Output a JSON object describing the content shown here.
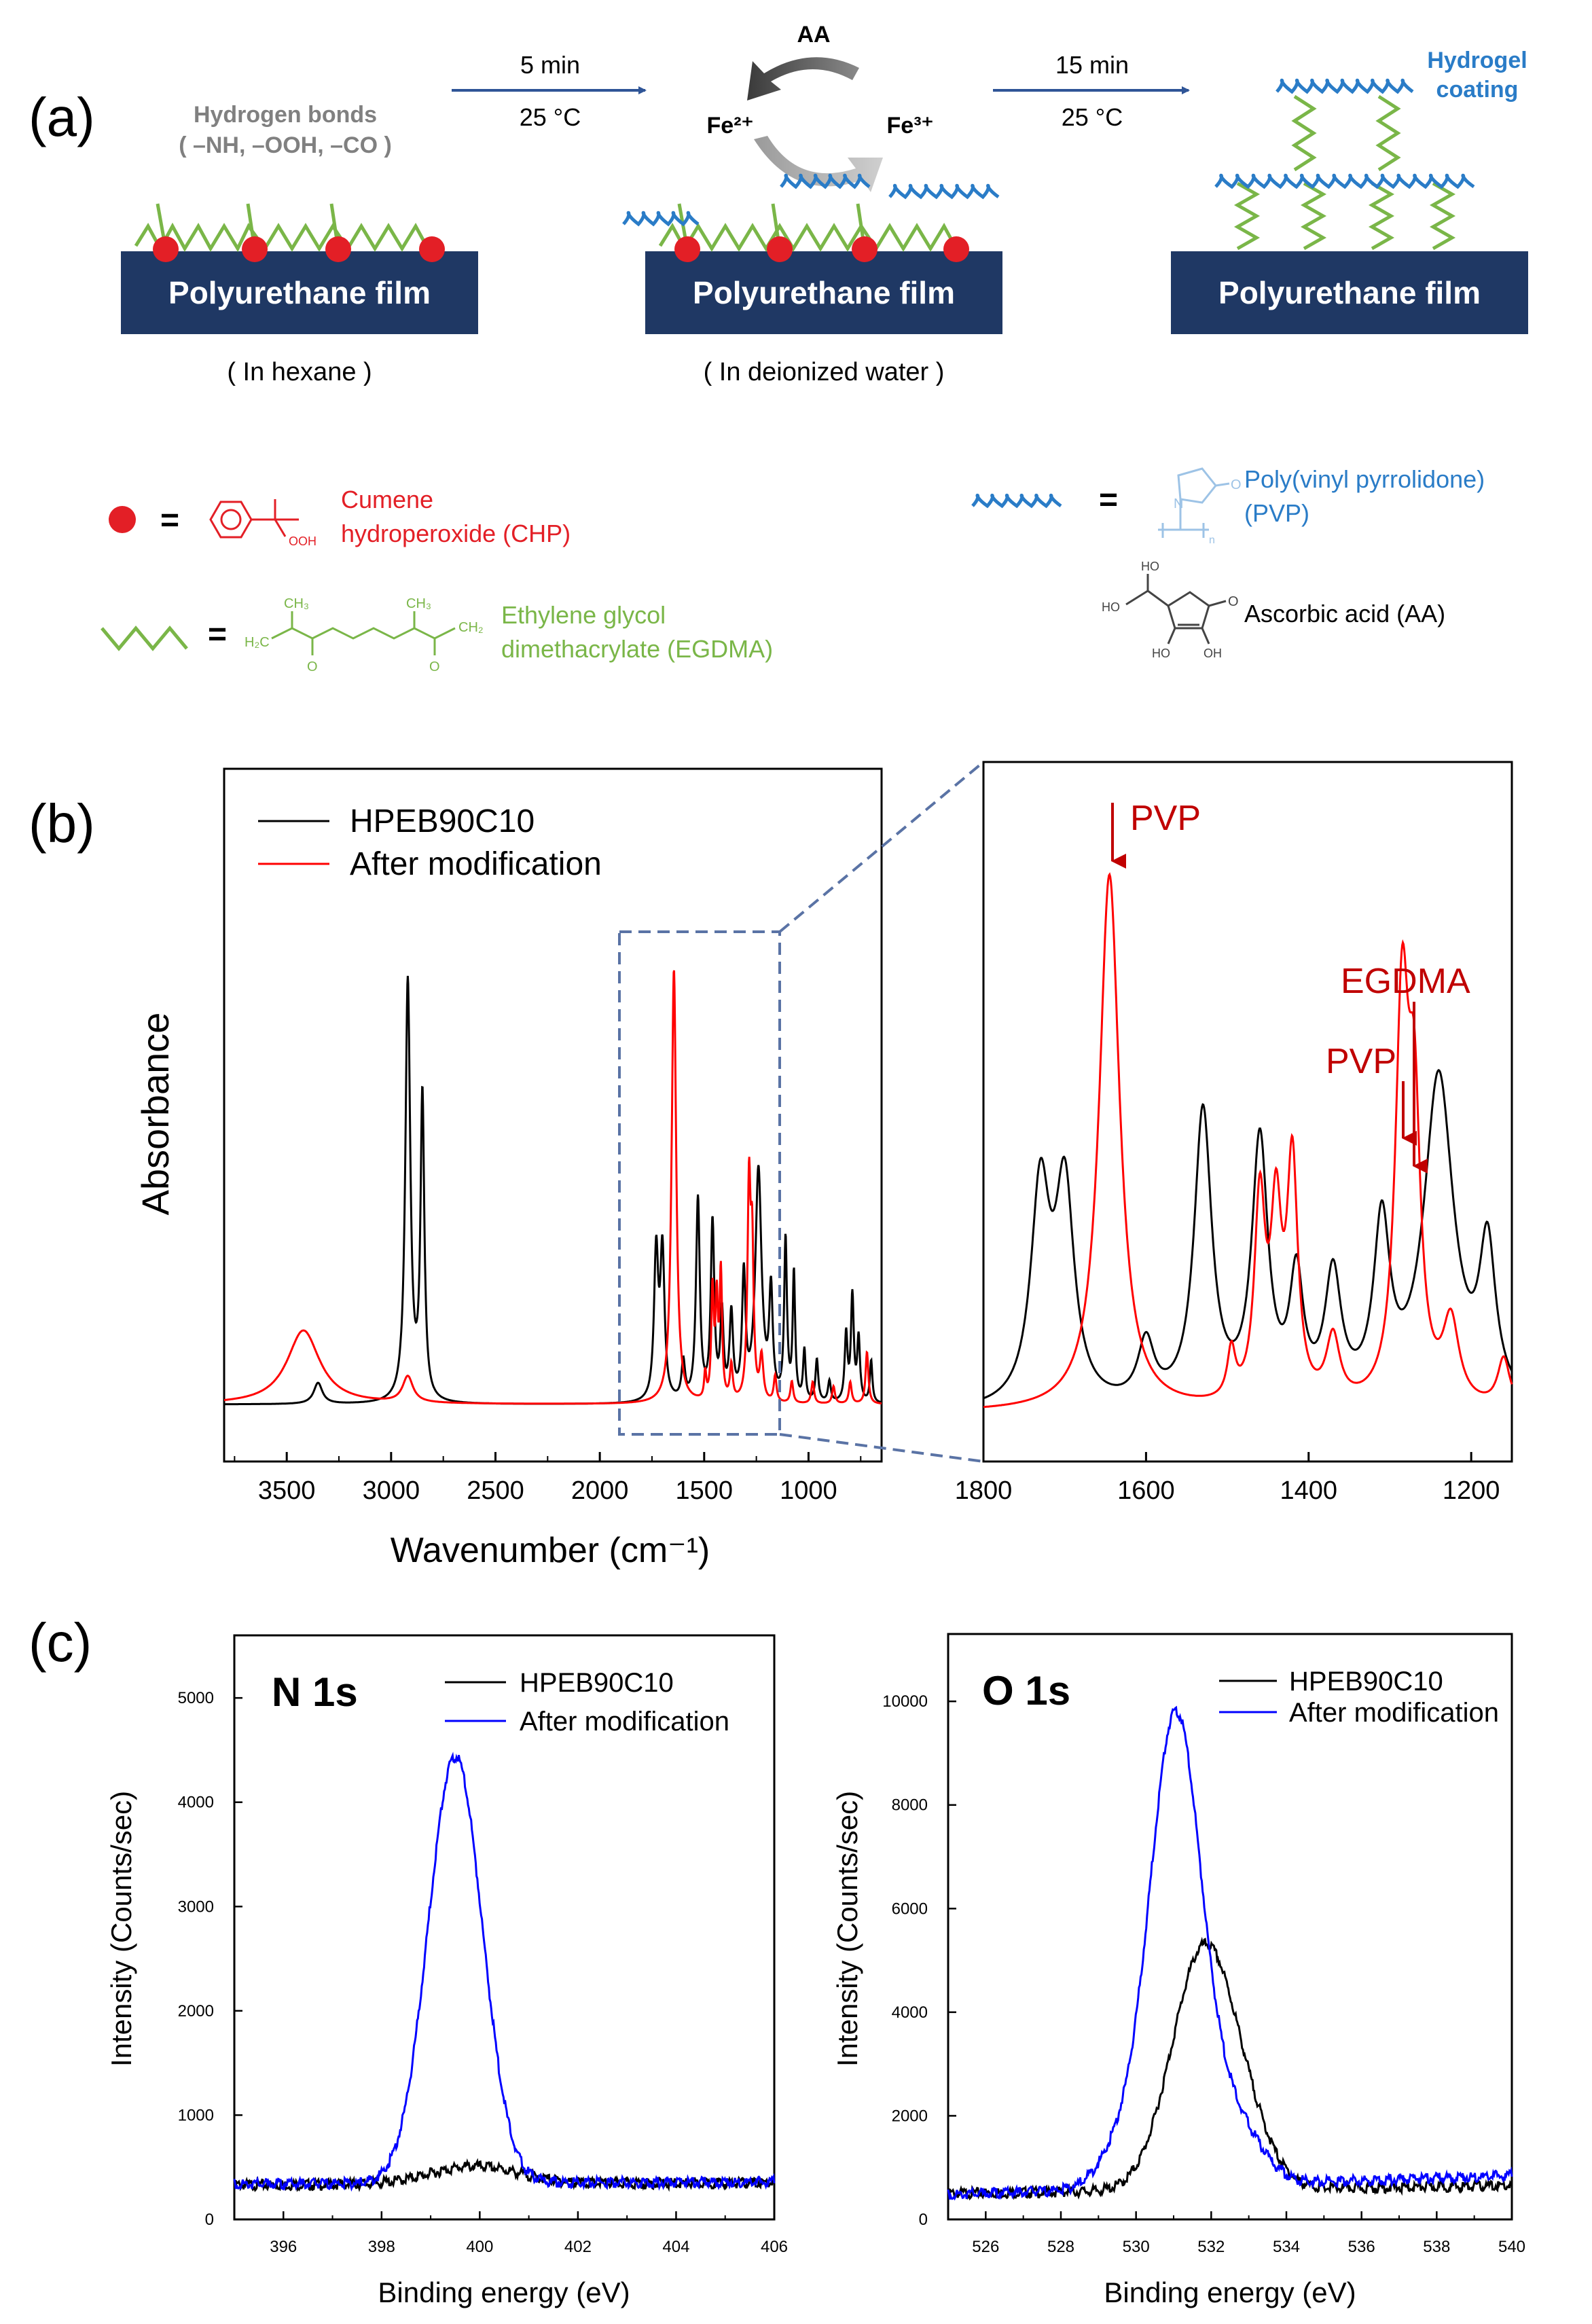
{
  "panel_a": {
    "label": "(a)",
    "hbond_title": "Hydrogen bonds",
    "hbond_groups": "( –NH, –OOH, –CO )",
    "film_label": "Polyurethane film",
    "step1_time": "5 min",
    "step1_temp": "25 °C",
    "step2_time": "15 min",
    "step2_temp": "25 °C",
    "aa_label": "AA",
    "fe2": "Fe²⁺",
    "fe3": "Fe³⁺",
    "hydrogel_line1": "Hydrogel",
    "hydrogel_line2": "coating",
    "medium1": "( In  hexane )",
    "medium2": "( In  deionized water )",
    "legend": {
      "equals": "=",
      "chp_line1": "Cumene",
      "chp_line2": "hydroperoxide (CHP)",
      "chp_ooh": "OOH",
      "egdma_line1": "Ethylene glycol",
      "egdma_line2": "dimethacrylate (EGDMA)",
      "egdma_ch3": "CH₃",
      "egdma_ch2": "CH₂",
      "egdma_h2c": "H₂C",
      "egdma_o": "O",
      "pvp_line1": "Poly(vinyl pyrrolidone)",
      "pvp_line2": "(PVP)",
      "pvp_n": "N",
      "pvp_o": "O",
      "pvp_sub": "n",
      "aa_name": "Ascorbic acid (AA)",
      "aa_ho": "HO",
      "aa_oh": "OH",
      "aa_o": "O"
    },
    "colors": {
      "navy": "#1f3864",
      "red": "#e31f26",
      "green": "#7ab648",
      "blue": "#2a7cc7",
      "gray": "#777777",
      "arrow": "#2f5597"
    }
  },
  "panel_b": {
    "label": "(b)",
    "chart_data": [
      {
        "type": "line",
        "xlabel": "Wavenumber (cm⁻¹)",
        "ylabel": "Absorbance",
        "xlim": [
          3800,
          650
        ],
        "xticks": [
          3500,
          3000,
          2500,
          2000,
          1500,
          1000
        ],
        "legend": [
          "HPEB90C10",
          "After modification"
        ],
        "series": [
          {
            "name": "HPEB90C10",
            "color": "#000000",
            "peaks": [
              [
                3350,
                0.05,
                25
              ],
              [
                2920,
                1.0,
                14
              ],
              [
                2850,
                0.72,
                11
              ],
              [
                1730,
                0.35,
                12
              ],
              [
                1700,
                0.35,
                12
              ],
              [
                1600,
                0.09,
                10
              ],
              [
                1530,
                0.48,
                11
              ],
              [
                1460,
                0.42,
                10
              ],
              [
                1415,
                0.2,
                9
              ],
              [
                1370,
                0.2,
                10
              ],
              [
                1310,
                0.29,
                10
              ],
              [
                1240,
                0.55,
                18
              ],
              [
                1180,
                0.25,
                10
              ],
              [
                1110,
                0.38,
                8
              ],
              [
                1070,
                0.3,
                7
              ],
              [
                1020,
                0.12,
                7
              ],
              [
                960,
                0.1,
                8
              ],
              [
                900,
                0.05,
                8
              ],
              [
                820,
                0.16,
                8
              ],
              [
                790,
                0.25,
                8
              ],
              [
                760,
                0.15,
                8
              ],
              [
                700,
                0.1,
                7
              ]
            ]
          },
          {
            "name": "After modification",
            "color": "#ff0000",
            "peaks": [
              [
                3420,
                0.17,
                95
              ],
              [
                2920,
                0.06,
                30
              ],
              [
                1645,
                1.0,
                13
              ],
              [
                1495,
                0.06,
                6
              ],
              [
                1460,
                0.25,
                7
              ],
              [
                1440,
                0.22,
                7
              ],
              [
                1420,
                0.29,
                7
              ],
              [
                1370,
                0.08,
                8
              ],
              [
                1285,
                0.49,
                9
              ],
              [
                1270,
                0.32,
                8
              ],
              [
                1225,
                0.1,
                10
              ],
              [
                1160,
                0.06,
                8
              ],
              [
                1080,
                0.05,
                8
              ],
              [
                980,
                0.05,
                8
              ],
              [
                880,
                0.04,
                8
              ],
              [
                800,
                0.05,
                8
              ],
              [
                720,
                0.12,
                8
              ]
            ]
          }
        ]
      },
      {
        "type": "line",
        "xlim": [
          1800,
          1150
        ],
        "xticks": [
          1800,
          1600,
          1400,
          1200
        ],
        "annotations": [
          "PVP",
          "EGDMA",
          "PVP"
        ]
      }
    ]
  },
  "panel_c": {
    "label": "(c)",
    "chart_data": [
      {
        "type": "line",
        "title": "N 1s",
        "xlabel": "Binding energy (eV)",
        "ylabel": "Intensity (Counts/sec)",
        "xlim": [
          395,
          406
        ],
        "ylim": [
          0,
          5600
        ],
        "xticks": [
          396,
          398,
          400,
          402,
          404,
          406
        ],
        "yticks": [
          0,
          1000,
          2000,
          3000,
          4000,
          5000
        ],
        "legend": [
          "HPEB90C10",
          "After modification"
        ],
        "series": [
          {
            "name": "HPEB90C10",
            "color": "#000000",
            "baseline": [
              330,
              350
            ],
            "peaks": [
              [
                399.9,
                170,
                0.9
              ]
            ]
          },
          {
            "name": "After modification",
            "color": "#0000ff",
            "baseline": [
              340,
              360
            ],
            "peaks": [
              [
                399.5,
                4090,
                0.55
              ]
            ]
          }
        ]
      },
      {
        "type": "line",
        "title": "O 1s",
        "xlabel": "Binding energy (eV)",
        "ylabel": "Intensity (Counts/sec)",
        "xlim": [
          525,
          540
        ],
        "ylim": [
          0,
          11300
        ],
        "xticks": [
          526,
          528,
          530,
          532,
          534,
          536,
          538,
          540
        ],
        "yticks": [
          0,
          2000,
          4000,
          6000,
          8000,
          10000
        ],
        "legend": [
          "HPEB90C10",
          "After modification"
        ],
        "series": [
          {
            "name": "HPEB90C10",
            "color": "#000000",
            "baseline": [
              500,
              650
            ],
            "peaks": [
              [
                531.8,
                4600,
                0.85
              ],
              [
                533.0,
                600,
                0.7
              ]
            ]
          },
          {
            "name": "After modification",
            "color": "#0000ff",
            "baseline": [
              480,
              850
            ],
            "peaks": [
              [
                531.05,
                9050,
                0.68
              ],
              [
                529.6,
                700,
                0.6
              ],
              [
                532.6,
                1200,
                0.7
              ]
            ]
          }
        ]
      }
    ]
  }
}
